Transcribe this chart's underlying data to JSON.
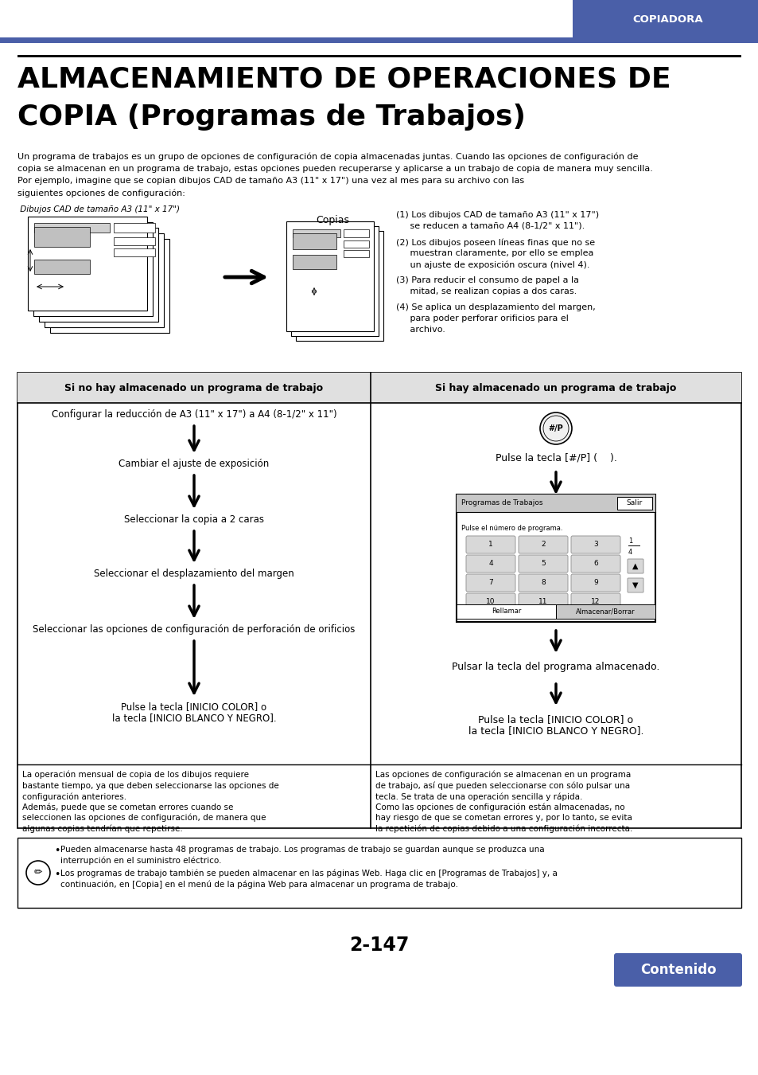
{
  "bg_color": "#ffffff",
  "header_blue": "#4a5fa8",
  "header_text": "COPIADORA",
  "title_line1": "ALMACENAMIENTO DE OPERACIONES DE",
  "title_line2": "COPIA (Programas de Trabajos)",
  "intro_text": "Un programa de trabajos es un grupo de opciones de configuración de copia almacenadas juntas. Cuando las opciones de configuración de\ncopia se almacenan en un programa de trabajo, estas opciones pueden recuperarse y aplicarse a un trabajo de copia de manera muy sencilla.\nPor ejemplo, imagine que se copian dibujos CAD de tamaño A3 (11\" x 17\") una vez al mes para su archivo con las\nsiguientes opciones de configuración:",
  "left_label": " Dibujos CAD de tamaño A3 (11\" x 17\")",
  "copies_label": "Copias",
  "right_items": [
    "(1) Los dibujos CAD de tamaño A3 (11\" x 17\")\n     se reducen a tamaño A4 (8-1/2\" x 11\").",
    "(2) Los dibujos poseen líneas finas que no se\n     muestran claramente, por ello se emplea\n     un ajuste de exposición oscura (nivel 4).",
    "(3) Para reducir el consumo de papel a la\n     mitad, se realizan copias a dos caras.",
    "(4) Se aplica un desplazamiento del margen,\n     para poder perforar orificios para el\n     archivo."
  ],
  "table_header_left": "Si no hay almacenado un programa de trabajo",
  "table_header_right": "Si hay almacenado un programa de trabajo",
  "table_left_items": [
    "Configurar la reducción de A3 (11\" x 17\") a A4 (8-1/2\" x 11\")",
    "Cambiar el ajuste de exposición",
    "Seleccionar la copia a 2 caras",
    "Seleccionar el desplazamiento del margen",
    "Seleccionar las opciones de configuración de perforación de orificios",
    "Pulse la tecla [INICIO COLOR] o\nla tecla [INICIO BLANCO Y NEGRO]."
  ],
  "table_right_item1": "Pulse la tecla [#/P] (    ).",
  "table_right_item2": "Pulsar la tecla del programa almacenado.",
  "table_right_item3_line1": "Pulse la tecla [INICIO COLOR] o",
  "table_right_item3_line2": "la tecla [INICIO BLANCO Y NEGRO].",
  "table_left_footer": "La operación mensual de copia de los dibujos requiere\nbastante tiempo, ya que deben seleccionarse las opciones de\nconfiguración anteriores.\nAdemás, puede que se cometan errores cuando se\nseleccionen las opciones de configuración, de manera que\nalgunas copias tendrían que repetirse.",
  "table_right_footer": "Las opciones de configuración se almacenan en un programa\nde trabajo, así que pueden seleccionarse con sólo pulsar una\ntecla. Se trata de una operación sencilla y rápida.\nComo las opciones de configuración están almacenadas, no\nhay riesgo de que se cometan errores y, por lo tanto, se evita\nla repetición de copias debido a una configuración incorrecta.",
  "note_bullet1": "Pueden almacenarse hasta 48 programas de trabajo. Los programas de trabajo se guardan aunque se produzca una\ninterrupción en el suministro eléctrico.",
  "note_bullet2": "Los programas de trabajo también se pueden almacenar en las páginas Web. Haga clic en [Programas de Trabajos] y, a\ncontinuación, en [Copia] en el menú de la página Web para almacenar un programa de trabajo.",
  "page_number": "2-147",
  "contenido_label": "Contenido",
  "contenido_color": "#4a5fa8"
}
